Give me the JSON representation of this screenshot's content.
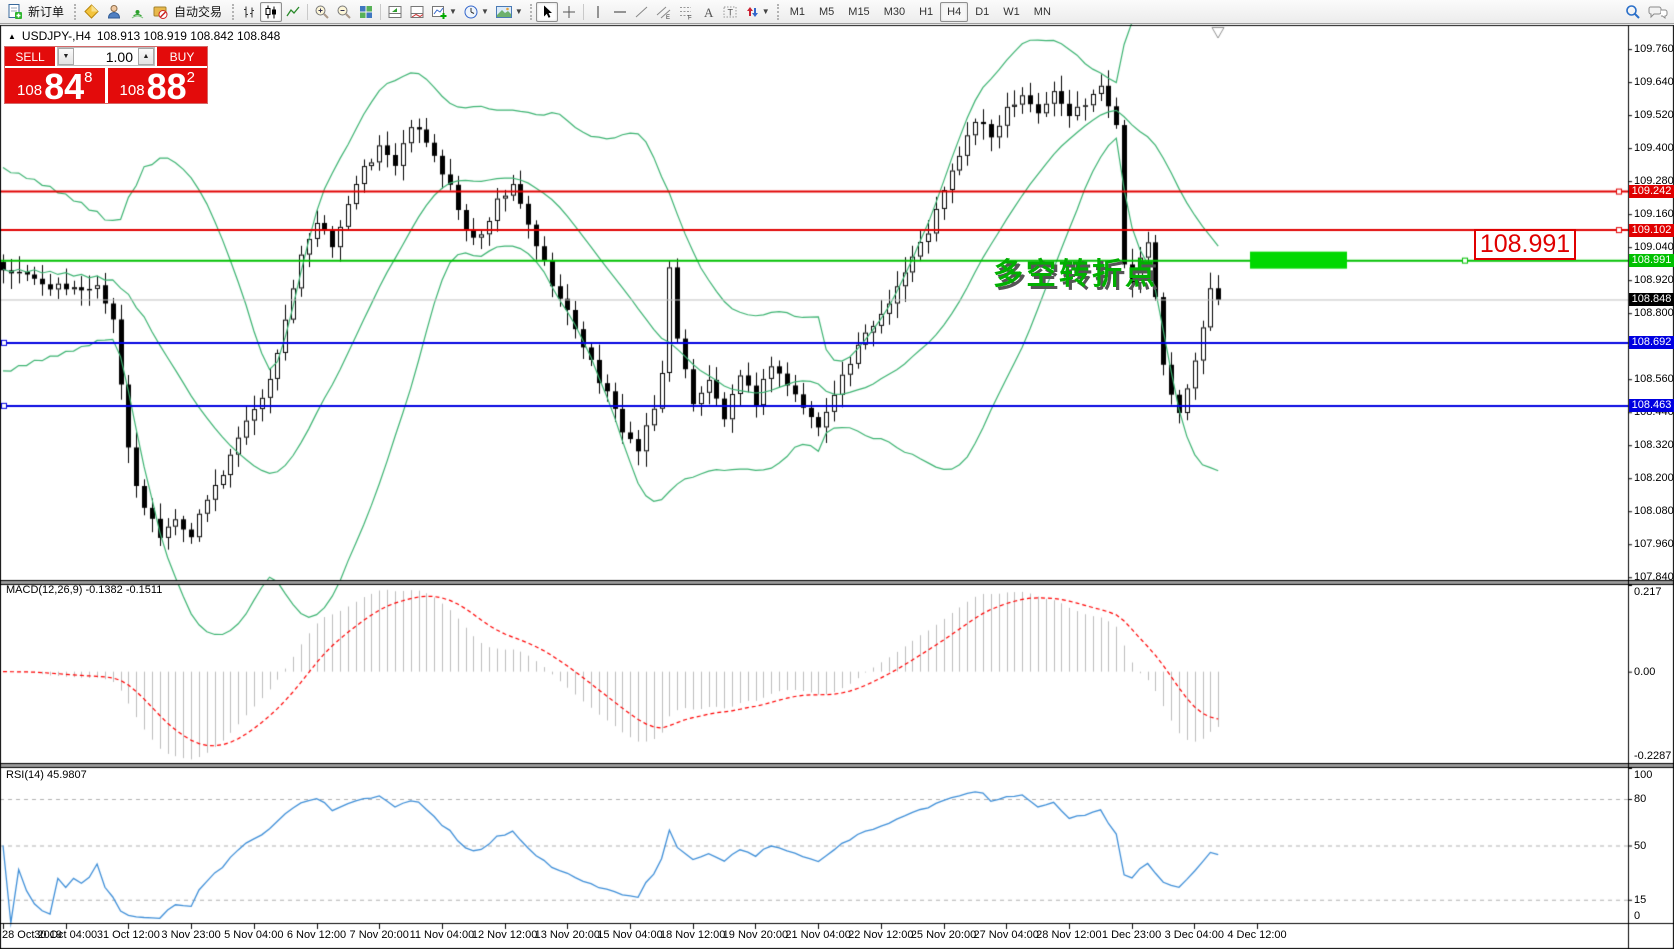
{
  "toolbar": {
    "new_order": "新订单",
    "auto_trading": "自动交易",
    "timeframes": [
      "M1",
      "M5",
      "M15",
      "M30",
      "H1",
      "H4",
      "D1",
      "W1",
      "MN"
    ],
    "active_timeframe": "H4"
  },
  "chart": {
    "collapse_icon": "▲",
    "symbol_period": "USDJPY-,H4",
    "quotes": "108.913 108.919 108.842 108.848",
    "annotation": "多空转折点",
    "callout_label": "108.991"
  },
  "trade_panel": {
    "sell_label": "SELL",
    "buy_label": "BUY",
    "volume": "1.00",
    "spin_down": "▼",
    "spin_up": "▲",
    "sell_prefix": "108",
    "sell_big": "84",
    "sell_sup": "8",
    "buy_prefix": "108",
    "buy_big": "88",
    "buy_sup": "2"
  },
  "price_axis": {
    "ticks": [
      "109.760",
      "109.640",
      "109.520",
      "109.400",
      "109.280",
      "109.160",
      "109.040",
      "108.920",
      "108.800",
      "108.680",
      "108.560",
      "108.440",
      "108.320",
      "108.200",
      "108.080",
      "107.960",
      "107.840"
    ],
    "special_labels": [
      {
        "text": "109.242",
        "bg": "#e00000",
        "fg": "#ffffff"
      },
      {
        "text": "109.102",
        "bg": "#e00000",
        "fg": "#ffffff"
      },
      {
        "text": "108.991",
        "bg": "#00c000",
        "fg": "#ffffff"
      },
      {
        "text": "108.848",
        "bg": "#000000",
        "fg": "#ffffff"
      },
      {
        "text": "108.692",
        "bg": "#0000e0",
        "fg": "#ffffff"
      },
      {
        "text": "108.463",
        "bg": "#0000e0",
        "fg": "#ffffff"
      }
    ]
  },
  "macd": {
    "label": "MACD(12,26,9) -0.1382 -0.1511",
    "axis": [
      "0.217",
      "0.00",
      "-0.2287"
    ]
  },
  "rsi": {
    "label": "RSI(14) 45.9807",
    "axis": [
      "100",
      "80",
      "50",
      "15",
      "0"
    ],
    "levels": [
      80,
      50,
      15
    ]
  },
  "time_axis": [
    "28 Oct 2019",
    "30 Oct 04:00",
    "31 Oct 12:00",
    "3 Nov 23:00",
    "5 Nov 04:00",
    "6 Nov 12:00",
    "7 Nov 20:00",
    "11 Nov 04:00",
    "12 Nov 12:00",
    "13 Nov 20:00",
    "15 Nov 04:00",
    "18 Nov 12:00",
    "19 Nov 20:00",
    "21 Nov 04:00",
    "22 Nov 12:00",
    "25 Nov 20:00",
    "27 Nov 04:00",
    "28 Nov 12:00",
    "1 Dec 23:00",
    "3 Dec 04:00",
    "4 Dec 12:00"
  ],
  "chart_data": {
    "type": "candlestick",
    "symbol": "USDJPY",
    "period": "H4",
    "bars_total": 156,
    "price_range": [
      107.83,
      109.844
    ],
    "close_keypoints": [
      [
        0,
        108.96
      ],
      [
        4,
        108.92
      ],
      [
        8,
        108.88
      ],
      [
        12,
        108.9
      ],
      [
        14,
        108.78
      ],
      [
        15,
        108.55
      ],
      [
        16,
        108.3
      ],
      [
        17,
        108.18
      ],
      [
        18,
        108.1
      ],
      [
        20,
        108.0
      ],
      [
        22,
        108.06
      ],
      [
        24,
        107.99
      ],
      [
        26,
        108.12
      ],
      [
        28,
        108.22
      ],
      [
        30,
        108.35
      ],
      [
        32,
        108.46
      ],
      [
        34,
        108.55
      ],
      [
        36,
        108.78
      ],
      [
        38,
        109.0
      ],
      [
        40,
        109.12
      ],
      [
        42,
        109.05
      ],
      [
        44,
        109.2
      ],
      [
        46,
        109.32
      ],
      [
        48,
        109.4
      ],
      [
        50,
        109.35
      ],
      [
        52,
        109.46
      ],
      [
        53,
        109.48
      ],
      [
        55,
        109.38
      ],
      [
        57,
        109.25
      ],
      [
        59,
        109.1
      ],
      [
        61,
        109.07
      ],
      [
        63,
        109.2
      ],
      [
        65,
        109.26
      ],
      [
        67,
        109.12
      ],
      [
        69,
        108.98
      ],
      [
        71,
        108.85
      ],
      [
        73,
        108.75
      ],
      [
        75,
        108.62
      ],
      [
        77,
        108.5
      ],
      [
        79,
        108.38
      ],
      [
        81,
        108.3
      ],
      [
        83,
        108.45
      ],
      [
        84,
        108.58
      ],
      [
        85,
        108.98
      ],
      [
        86,
        108.7
      ],
      [
        88,
        108.48
      ],
      [
        90,
        108.55
      ],
      [
        92,
        108.42
      ],
      [
        94,
        108.56
      ],
      [
        96,
        108.48
      ],
      [
        98,
        108.62
      ],
      [
        100,
        108.54
      ],
      [
        102,
        108.46
      ],
      [
        104,
        108.38
      ],
      [
        106,
        108.52
      ],
      [
        108,
        108.62
      ],
      [
        110,
        108.72
      ],
      [
        112,
        108.8
      ],
      [
        114,
        108.9
      ],
      [
        116,
        109.0
      ],
      [
        118,
        109.1
      ],
      [
        120,
        109.24
      ],
      [
        122,
        109.38
      ],
      [
        124,
        109.5
      ],
      [
        126,
        109.44
      ],
      [
        128,
        109.55
      ],
      [
        130,
        109.6
      ],
      [
        132,
        109.53
      ],
      [
        134,
        109.6
      ],
      [
        136,
        109.52
      ],
      [
        138,
        109.57
      ],
      [
        140,
        109.64
      ],
      [
        141,
        109.55
      ],
      [
        142,
        109.5
      ],
      [
        143,
        108.98
      ],
      [
        144,
        108.9
      ],
      [
        145,
        109.0
      ],
      [
        146,
        109.06
      ],
      [
        147,
        108.85
      ],
      [
        148,
        108.6
      ],
      [
        149,
        108.5
      ],
      [
        150,
        108.45
      ],
      [
        151,
        108.52
      ],
      [
        152,
        108.62
      ],
      [
        153,
        108.75
      ],
      [
        154,
        108.88
      ],
      [
        155,
        108.848
      ]
    ],
    "hlines": [
      {
        "price": 109.242,
        "color": "#e00000",
        "width": 2
      },
      {
        "price": 109.102,
        "color": "#e00000",
        "width": 2
      },
      {
        "price": 108.991,
        "color": "#00c000",
        "width": 2
      },
      {
        "price": 108.848,
        "color": "#c0c0c0",
        "width": 1
      },
      {
        "price": 108.692,
        "color": "#0000e0",
        "width": 2
      },
      {
        "price": 108.463,
        "color": "#0000e0",
        "width": 2
      }
    ],
    "highlight_box": {
      "price": 108.991,
      "color": "#00d800"
    },
    "colors": {
      "bull": "#ffffff",
      "bear": "#000000",
      "outline": "#000000",
      "bollinger": "#3CB371",
      "macd_hist": "#bdbdbd",
      "macd_signal": "#ff0000",
      "rsi": "#3f8fd8",
      "grid": "#b0b0b0"
    },
    "bollinger": {
      "period": 20,
      "deviation": 2
    },
    "macd_params": {
      "fast": 12,
      "slow": 26,
      "signal": 9,
      "value": -0.1382,
      "signal_value": -0.1511,
      "range": [
        -0.2287,
        0.217
      ]
    },
    "rsi_params": {
      "period": 14,
      "value": 45.9807,
      "range": [
        0,
        100
      ]
    }
  }
}
